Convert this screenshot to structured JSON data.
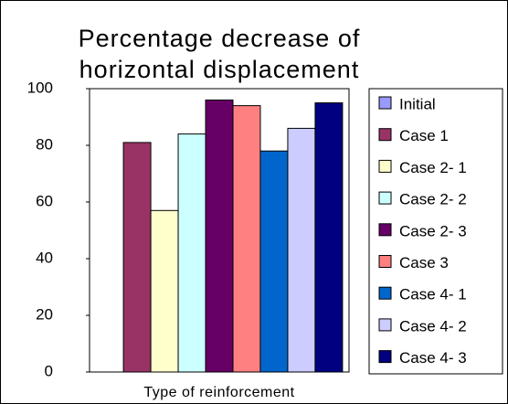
{
  "chart_data": {
    "type": "bar",
    "title": [
      "Percentage decrease of",
      "horizontal displacement"
    ],
    "categories": [
      "Type of reinforcement"
    ],
    "series": [
      {
        "name": "Initial",
        "color": "#9999ff",
        "values": [
          0
        ]
      },
      {
        "name": "Case 1",
        "color": "#993366",
        "values": [
          81
        ]
      },
      {
        "name": "Case 2- 1",
        "color": "#ffffcc",
        "values": [
          57
        ]
      },
      {
        "name": "Case 2- 2",
        "color": "#ccffff",
        "values": [
          84
        ]
      },
      {
        "name": "Case 2- 3",
        "color": "#660066",
        "values": [
          96
        ]
      },
      {
        "name": "Case 3",
        "color": "#ff8080",
        "values": [
          94
        ]
      },
      {
        "name": "Case 4- 1",
        "color": "#0066cc",
        "values": [
          78
        ]
      },
      {
        "name": "Case 4- 2",
        "color": "#ccccff",
        "values": [
          86
        ]
      },
      {
        "name": "Case 4- 3",
        "color": "#000080",
        "values": [
          95
        ]
      }
    ],
    "ylim": [
      0,
      100
    ],
    "yticks": [
      0,
      20,
      40,
      60,
      80,
      100
    ],
    "grid": false,
    "legend": "right"
  }
}
